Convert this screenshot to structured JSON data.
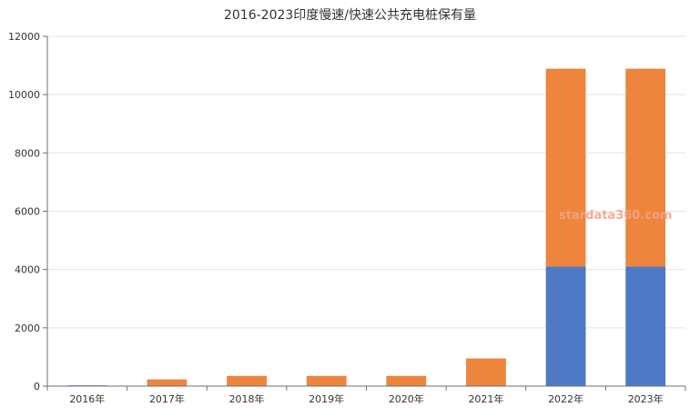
{
  "chart_data": {
    "type": "bar",
    "stacked": true,
    "title": "2016-2023印度慢速/快速公共充电桩保有量",
    "categories": [
      "2016年",
      "2017年",
      "2018年",
      "2019年",
      "2020年",
      "2021年",
      "2022年",
      "2023年"
    ],
    "series": [
      {
        "color": "#4e79c7",
        "values": [
          25,
          0,
          0,
          0,
          0,
          0,
          4100,
          4100
        ]
      },
      {
        "color": "#ed853d",
        "values": [
          0,
          230,
          350,
          350,
          350,
          950,
          6790,
          6790
        ]
      }
    ],
    "yticks": [
      "0",
      "2000",
      "4000",
      "6000",
      "8000",
      "10000",
      "12000"
    ],
    "ylim": [
      0,
      12000
    ],
    "grid": true,
    "legend": "none"
  },
  "watermark": "stardata360.com"
}
